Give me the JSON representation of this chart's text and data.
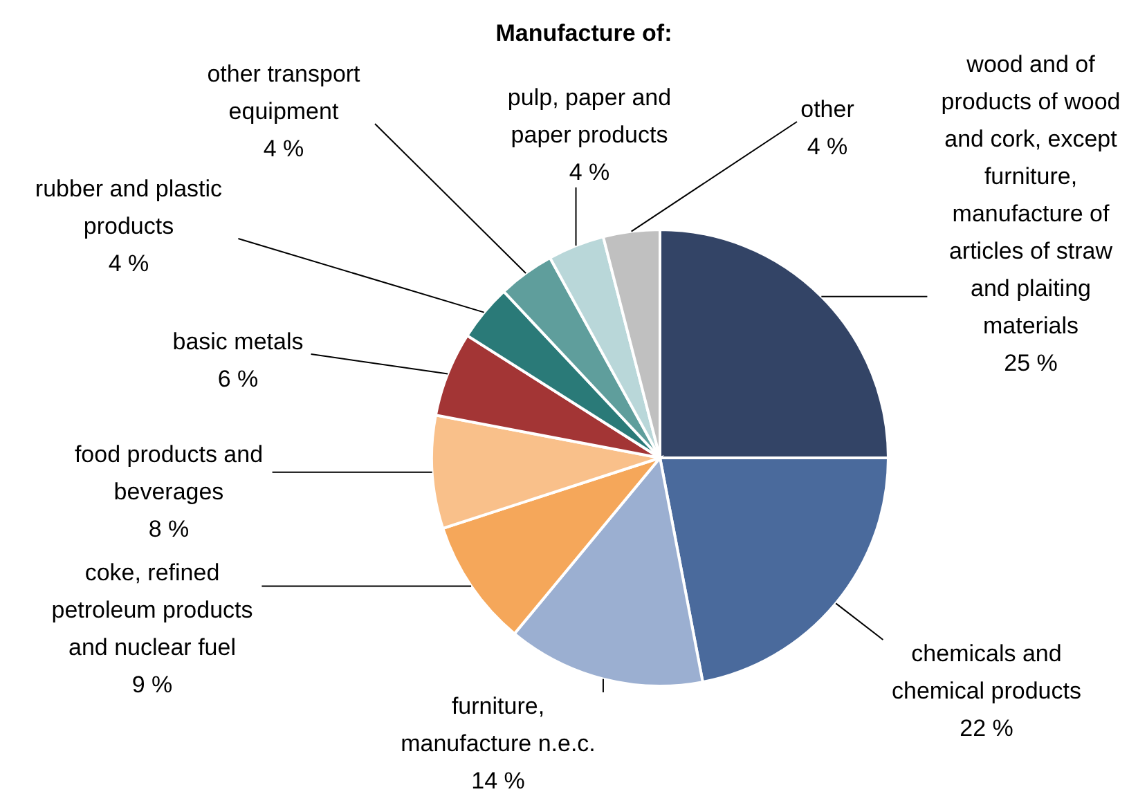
{
  "chart_data": {
    "type": "pie",
    "title": "Manufacture of:",
    "categories": [
      "wood and of products of wood and cork, except furniture, manufacture of articles of straw and plaiting materials",
      "chemicals and chemical products",
      "furniture, manufacture n.e.c.",
      "coke, refined petroleum products and nuclear fuel",
      "food products and beverages",
      "basic metals",
      "rubber and plastic products",
      "other transport equipment",
      "pulp, paper and paper products",
      "other"
    ],
    "values": [
      25,
      22,
      14,
      9,
      8,
      6,
      4,
      4,
      4,
      4
    ],
    "value_labels": [
      "25 %",
      "22 %",
      "14 %",
      "9 %",
      "8 %",
      "6 %",
      "4 %",
      "4 %",
      "4 %",
      "4 %"
    ],
    "colors": [
      "#334466",
      "#4a6a9c",
      "#9bafd1",
      "#f5a75a",
      "#f9c08a",
      "#a33535",
      "#2a7a78",
      "#5f9e9c",
      "#b9d7d9",
      "#c0c0c0"
    ],
    "legend": false
  }
}
